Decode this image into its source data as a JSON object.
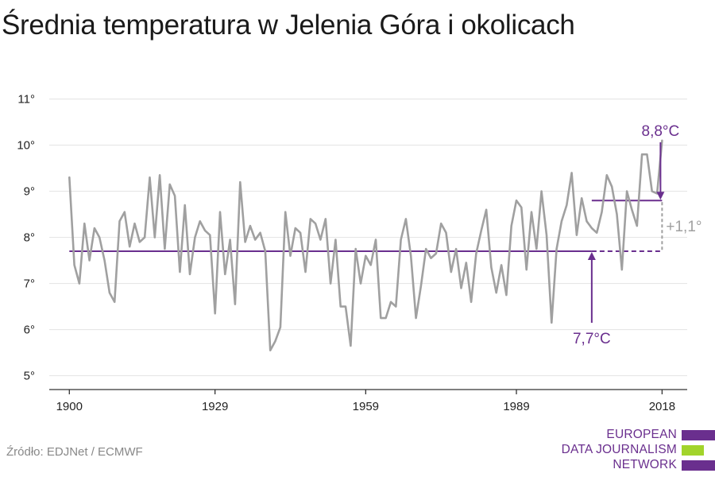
{
  "title": "Średnia temperatura w Jelenia Góra i okolicach",
  "source": "Źródło: EDJNet / ECMWF",
  "logo": {
    "lines": [
      "EUROPEAN",
      "DATA JOURNALISM",
      "NETWORK"
    ],
    "colors": [
      "#6a2f8e",
      "#a2d42b",
      "#6a2f8e"
    ]
  },
  "colors": {
    "series": "#a0a0a0",
    "accent": "#6a2f8e",
    "grid": "#e3e3e3",
    "axis": "#333333",
    "delta": "#a0a0a0"
  },
  "chart_data": {
    "type": "line",
    "title": "Średnia temperatura w Jelenia Góra i okolicach",
    "xlabel": "",
    "ylabel": "",
    "xlim": [
      1896,
      2023
    ],
    "ylim": [
      4.7,
      11.2
    ],
    "grid": true,
    "x_ticks": [
      1900,
      1929,
      1959,
      1989,
      2018
    ],
    "x_tick_labels": [
      "1900",
      "1929",
      "1959",
      "1989",
      "2018"
    ],
    "y_ticks": [
      5,
      6,
      7,
      8,
      9,
      10,
      11
    ],
    "y_tick_labels": [
      "5°",
      "6°",
      "7°",
      "8°",
      "9°",
      "10°",
      "11°"
    ],
    "x": [
      1900,
      1901,
      1902,
      1903,
      1904,
      1905,
      1906,
      1907,
      1908,
      1909,
      1910,
      1911,
      1912,
      1913,
      1914,
      1915,
      1916,
      1917,
      1918,
      1919,
      1920,
      1921,
      1922,
      1923,
      1924,
      1925,
      1926,
      1927,
      1928,
      1929,
      1930,
      1931,
      1932,
      1933,
      1934,
      1935,
      1936,
      1937,
      1938,
      1939,
      1940,
      1941,
      1942,
      1943,
      1944,
      1945,
      1946,
      1947,
      1948,
      1949,
      1950,
      1951,
      1952,
      1953,
      1954,
      1955,
      1956,
      1957,
      1958,
      1959,
      1960,
      1961,
      1962,
      1963,
      1964,
      1965,
      1966,
      1967,
      1968,
      1969,
      1970,
      1971,
      1972,
      1973,
      1974,
      1975,
      1976,
      1977,
      1978,
      1979,
      1980,
      1981,
      1982,
      1983,
      1984,
      1985,
      1986,
      1987,
      1988,
      1989,
      1990,
      1991,
      1992,
      1993,
      1994,
      1995,
      1996,
      1997,
      1998,
      1999,
      2000,
      2001,
      2002,
      2003,
      2004,
      2005,
      2006,
      2007,
      2008,
      2009,
      2010,
      2011,
      2012,
      2013,
      2014,
      2015,
      2016,
      2017,
      2018
    ],
    "series": [
      {
        "values": [
          9.3,
          7.4,
          7.0,
          8.3,
          7.5,
          8.2,
          8.0,
          7.5,
          6.8,
          6.6,
          8.35,
          8.55,
          7.8,
          8.3,
          7.9,
          8.0,
          9.3,
          8.0,
          9.35,
          7.75,
          9.15,
          8.9,
          7.25,
          8.7,
          7.2,
          8.0,
          8.35,
          8.15,
          8.05,
          6.35,
          8.55,
          7.2,
          7.95,
          6.55,
          9.2,
          7.9,
          8.25,
          7.95,
          8.1,
          7.7,
          5.55,
          5.75,
          6.05,
          8.55,
          7.6,
          8.2,
          8.1,
          7.25,
          8.4,
          8.3,
          7.95,
          8.4,
          7.0,
          7.95,
          6.5,
          6.5,
          5.65,
          7.75,
          7.0,
          7.6,
          7.4,
          7.95,
          6.25,
          6.25,
          6.6,
          6.5,
          7.95,
          8.4,
          7.6,
          6.25,
          6.95,
          7.75,
          7.55,
          7.65,
          8.3,
          8.1,
          7.25,
          7.75,
          6.9,
          7.45,
          6.6,
          7.65,
          8.15,
          8.6,
          7.35,
          6.8,
          7.4,
          6.75,
          8.25,
          8.8,
          8.65,
          7.3,
          8.55,
          7.75,
          9.0,
          8.05,
          6.15,
          7.75,
          8.35,
          8.7,
          9.4,
          8.05,
          8.85,
          8.35,
          8.2,
          8.1,
          8.55,
          9.35,
          9.1,
          8.5,
          7.3,
          9.0,
          8.6,
          8.25,
          9.8,
          9.8,
          9.0,
          8.95,
          10.1
        ]
      }
    ],
    "reference_lines": [
      {
        "value": 7.7,
        "x_start": 1900,
        "x_end": 2004,
        "style": "solid",
        "label": "7,7°C"
      },
      {
        "value": 7.7,
        "x_start": 2004,
        "x_end": 2018,
        "style": "dashed"
      },
      {
        "value": 8.8,
        "x_start": 2004,
        "x_end": 2018,
        "style": "solid",
        "label": "8,8°C"
      }
    ],
    "annotations": [
      {
        "text": "7,7°C",
        "x": 2004
      },
      {
        "text": "8,8°C",
        "x": 2018
      },
      {
        "text": "+1,1°",
        "x": 2018
      }
    ]
  }
}
